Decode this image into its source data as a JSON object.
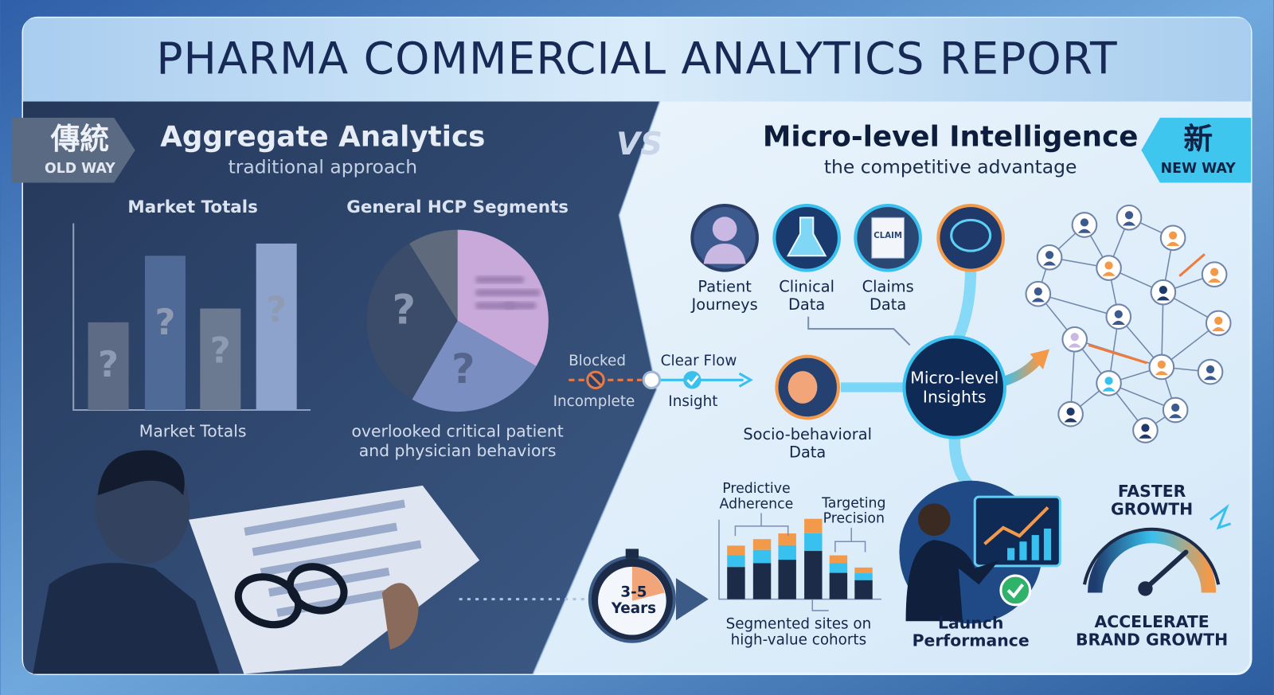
{
  "header": {
    "title": "PHARMA COMMERCIAL ANALYTICS REPORT"
  },
  "old_way": {
    "badge": {
      "symbol": "傳統",
      "label": "OLD WAY"
    },
    "heading": "Aggregate Analytics",
    "subheading": "traditional approach",
    "bar_chart": {
      "title": "Market Totals",
      "bar_labels": [
        "?",
        "?",
        "?",
        "?"
      ],
      "caption": "Market Totals"
    },
    "pie_chart": {
      "title": "General HCP Segments",
      "slice_labels": [
        "?",
        "?"
      ],
      "caption": [
        "overlooked critical patient",
        "and physician behaviors"
      ]
    }
  },
  "versus": "VS",
  "flow": {
    "blocked": "Blocked",
    "blocked_note": "Incomplete",
    "clear": "Clear Flow",
    "clear_note": "Insight"
  },
  "new_way": {
    "badge": {
      "symbol": "新",
      "label": "NEW WAY"
    },
    "heading": "Micro-level Intelligence",
    "subheading": "the competitive advantage",
    "sources": [
      {
        "label": [
          "Patient",
          "Journeys"
        ]
      },
      {
        "label": [
          "Clinical",
          "Data"
        ]
      },
      {
        "label": [
          "Claims",
          "Data"
        ],
        "icon_text": "CLAIM"
      }
    ],
    "socio": [
      "Socio-behavioral",
      "Data"
    ],
    "hub": [
      "Micro-level",
      "Insights"
    ],
    "timeline": [
      "3-5",
      "Years"
    ],
    "chart": {
      "callouts": [
        [
          "Predictive",
          "Adherence"
        ],
        [
          "Targeting",
          "Precision"
        ]
      ],
      "caption": [
        "Segmented sites on",
        "high-value cohorts"
      ]
    },
    "launch": [
      "Launch",
      "Performance"
    ],
    "growth": {
      "top": [
        "FASTER",
        "GROWTH"
      ],
      "bottom": [
        "ACCELERATE",
        "BRAND GROWTH"
      ]
    }
  }
}
